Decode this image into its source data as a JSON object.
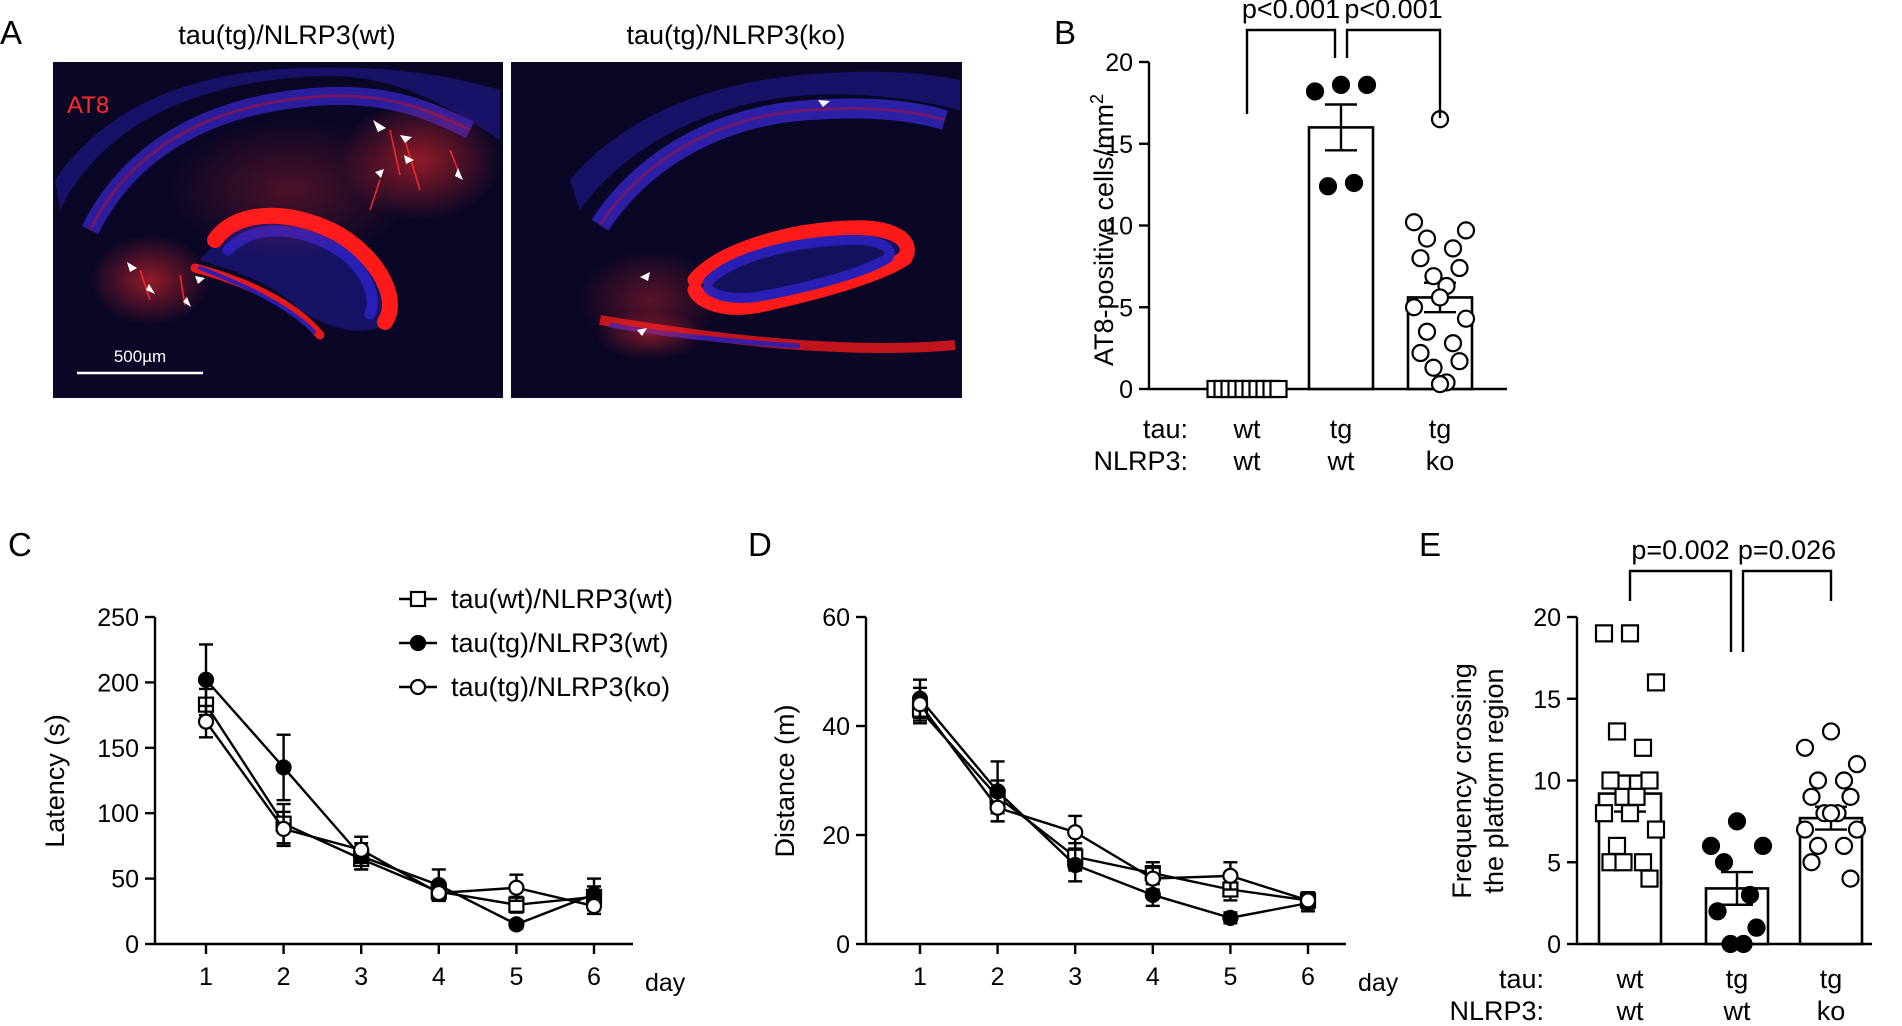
{
  "panel_labels": {
    "a": "A",
    "b": "B",
    "c": "C",
    "d": "D",
    "e": "E"
  },
  "micrographs": {
    "left_title": "tau(tg)/NLRP3(wt)",
    "right_title": "tau(tg)/NLRP3(ko)",
    "stain_label": "AT8",
    "scale_bar": "500µm",
    "colors": {
      "nuclei": "#2a1fb5",
      "stain": "#ff1a1a",
      "background": "#090725"
    }
  },
  "group_labels": {
    "tau_row": "tau:",
    "nlrp3_row": "NLRP3:",
    "tau": [
      "wt",
      "tg",
      "tg"
    ],
    "nlrp3": [
      "wt",
      "wt",
      "ko"
    ]
  },
  "chart_data": [
    {
      "id": "B",
      "type": "bar",
      "ylabel": "AT8-positive cells/mm²",
      "ylim": [
        0,
        20
      ],
      "yticks": [
        "0",
        "5",
        "10",
        "15",
        "20"
      ],
      "categories": [
        "tau wt / NLRP3 wt",
        "tau tg / NLRP3 wt",
        "tau tg / NLRP3 ko"
      ],
      "means": [
        0,
        16.0,
        5.6
      ],
      "sem": [
        0,
        1.4,
        0.9
      ],
      "points": [
        [
          0,
          0,
          0,
          0,
          0,
          0,
          0,
          0,
          0,
          0
        ],
        [
          18.6,
          18.2,
          18.6,
          12.4,
          12.6
        ],
        [
          16.5,
          10.2,
          9.7,
          9.2,
          8.6,
          8.0,
          7.4,
          6.9,
          6.3,
          5.6,
          5.0,
          4.3,
          3.5,
          2.8,
          2.2,
          1.7,
          1.3,
          0.4,
          0.3
        ]
      ],
      "markers": [
        "square-open",
        "circle-filled",
        "circle-open"
      ],
      "comparisons": [
        {
          "between": [
            0,
            1
          ],
          "label": "p<0.001"
        },
        {
          "between": [
            1,
            2
          ],
          "label": "p<0.001"
        }
      ]
    },
    {
      "id": "C",
      "type": "line",
      "x": [
        1,
        2,
        3,
        4,
        5,
        6
      ],
      "xlabel": "day",
      "ylabel": "Latency (s)",
      "ylim": [
        0,
        250
      ],
      "yticks": [
        "0",
        "50",
        "100",
        "150",
        "200",
        "250"
      ],
      "xticks": [
        "1",
        "2",
        "3",
        "4",
        "5",
        "6"
      ],
      "legend_position": "top-right",
      "series": [
        {
          "name": "tau(wt)/NLRP3(wt)",
          "marker": "square-open",
          "values": [
            183,
            92,
            65,
            40,
            30,
            36
          ],
          "sem": [
            12,
            15,
            8,
            7,
            6,
            8
          ]
        },
        {
          "name": "tau(tg)/NLRP3(wt)",
          "marker": "circle-filled",
          "values": [
            202,
            135,
            67,
            45,
            15,
            38
          ],
          "sem": [
            27,
            25,
            10,
            12,
            3,
            12
          ]
        },
        {
          "name": "tau(tg)/NLRP3(ko)",
          "marker": "circle-open",
          "values": [
            170,
            88,
            72,
            39,
            43,
            29
          ],
          "sem": [
            12,
            13,
            10,
            6,
            10,
            6
          ]
        }
      ]
    },
    {
      "id": "D",
      "type": "line",
      "x": [
        1,
        2,
        3,
        4,
        5,
        6
      ],
      "xlabel": "day",
      "ylabel": "Distance (m)",
      "ylim": [
        0,
        60
      ],
      "yticks": [
        "0",
        "20",
        "40",
        "60"
      ],
      "xticks": [
        "1",
        "2",
        "3",
        "4",
        "5",
        "6"
      ],
      "series": [
        {
          "name": "tau(wt)/NLRP3(wt)",
          "marker": "square-open",
          "values": [
            43,
            27,
            16,
            13,
            10,
            8
          ],
          "sem": [
            2.5,
            3,
            2.5,
            2,
            2,
            1
          ]
        },
        {
          "name": "tau(tg)/NLRP3(wt)",
          "marker": "circle-filled",
          "values": [
            45,
            28,
            14.5,
            9,
            4.8,
            7.5
          ],
          "sem": [
            3.5,
            5.5,
            3,
            2,
            1,
            1.5
          ]
        },
        {
          "name": "tau(tg)/NLRP3(ko)",
          "marker": "circle-open",
          "values": [
            44,
            25,
            20.5,
            12,
            12.5,
            8
          ],
          "sem": [
            3,
            2.5,
            3,
            2,
            2.5,
            1.5
          ]
        }
      ]
    },
    {
      "id": "E",
      "type": "bar",
      "ylabel": "Frequency crossing the platform region",
      "ylim": [
        0,
        20
      ],
      "yticks": [
        "0",
        "5",
        "10",
        "15",
        "20"
      ],
      "categories": [
        "tau wt / NLRP3 wt",
        "tau tg / NLRP3 wt",
        "tau tg / NLRP3 ko"
      ],
      "means": [
        9.2,
        3.4,
        7.7
      ],
      "sem": [
        1.1,
        1.0,
        0.7
      ],
      "points": [
        [
          19,
          19,
          16,
          13,
          12,
          10,
          10,
          9,
          9,
          8,
          8,
          7,
          6,
          5,
          5,
          4,
          5
        ],
        [
          7.5,
          6,
          6,
          5,
          3,
          2,
          1,
          0,
          0
        ],
        [
          13,
          12,
          11,
          10,
          10,
          9,
          9,
          8,
          8,
          8,
          7,
          7,
          6,
          6,
          5,
          4
        ]
      ],
      "markers": [
        "square-open",
        "circle-filled",
        "circle-open"
      ],
      "comparisons": [
        {
          "between": [
            0,
            1
          ],
          "label": "p=0.002"
        },
        {
          "between": [
            1,
            2
          ],
          "label": "p=0.026"
        }
      ]
    }
  ]
}
